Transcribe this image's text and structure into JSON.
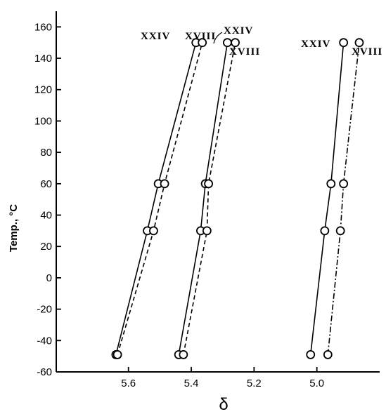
{
  "chart_data": {
    "type": "line",
    "title": "",
    "xlabel": "δ",
    "ylabel": "Temp., °C",
    "xlim": [
      5.83,
      4.8
    ],
    "ylim": [
      -60,
      170
    ],
    "x_reversed": true,
    "grid": false,
    "x_ticks": [
      5.6,
      5.4,
      5.2,
      5.0
    ],
    "x_tick_labels": [
      "5.6",
      "5.4",
      "5.2",
      "5.0"
    ],
    "y_ticks": [
      -60,
      -40,
      -20,
      0,
      20,
      40,
      60,
      80,
      100,
      120,
      140,
      160
    ],
    "y_tick_labels": [
      "-60",
      "-40",
      "-20",
      "0",
      "20",
      "40",
      "60",
      "80",
      "100",
      "120",
      "140",
      "160"
    ],
    "series": [
      {
        "name": "XXIV",
        "style": "solid",
        "x": [
          5.64,
          5.54,
          5.505,
          5.385
        ],
        "y": [
          -49,
          30,
          60,
          150
        ]
      },
      {
        "name": "XVIII",
        "style": "dashed",
        "x": [
          5.635,
          5.52,
          5.485,
          5.365
        ],
        "y": [
          -49,
          30,
          60,
          150
        ]
      },
      {
        "name": "XXIV",
        "style": "solid",
        "x": [
          5.44,
          5.37,
          5.355,
          5.285
        ],
        "y": [
          -49,
          30,
          60,
          150
        ]
      },
      {
        "name": "XVIII",
        "style": "dashed",
        "x": [
          5.425,
          5.35,
          5.345,
          5.26
        ],
        "y": [
          -49,
          30,
          60,
          150
        ]
      },
      {
        "name": "XXIV",
        "style": "solid",
        "x": [
          5.02,
          4.975,
          4.955,
          4.915
        ],
        "y": [
          -49,
          30,
          60,
          150
        ]
      },
      {
        "name": "XVIII",
        "style": "dashdot",
        "x": [
          4.965,
          4.925,
          4.915,
          4.865
        ],
        "y": [
          -49,
          30,
          60,
          150
        ]
      }
    ]
  }
}
